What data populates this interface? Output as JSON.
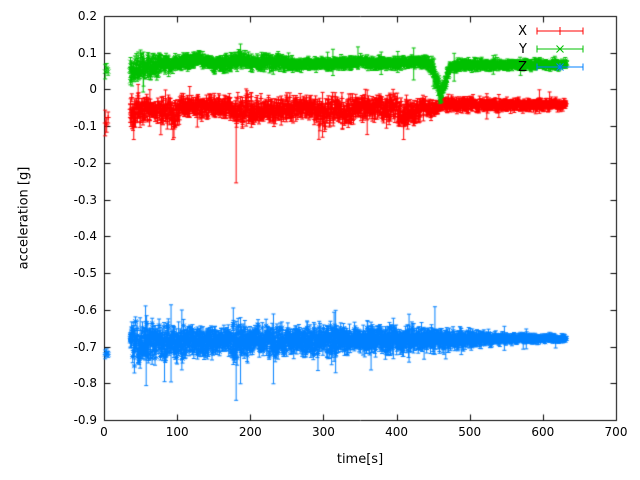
{
  "chart_data": {
    "type": "scatter",
    "title": "",
    "xlabel": "time[s]",
    "ylabel": "acceleration [g]",
    "xlim": [
      0,
      700
    ],
    "ylim": [
      -0.9,
      0.2
    ],
    "xticks": [
      0,
      100,
      200,
      300,
      400,
      500,
      600,
      700
    ],
    "xtick_labels": [
      "0",
      "100",
      "200",
      "300",
      "400",
      "500",
      "600",
      "700"
    ],
    "yticks": [
      0.2,
      0.1,
      0,
      -0.1,
      -0.2,
      -0.3,
      -0.4,
      -0.5,
      -0.6,
      -0.7,
      -0.8,
      -0.9
    ],
    "ytick_labels": [
      "0.2",
      "0.1",
      "0",
      "-0.1",
      "-0.2",
      "-0.3",
      "-0.4",
      "-0.5",
      "-0.6",
      "-0.7",
      "-0.8",
      "-0.9"
    ],
    "grid": false,
    "background": "#ffffff",
    "axis_color": "#000000",
    "legend": {
      "position": "top-right-inside",
      "style": "errorbar-samples"
    },
    "series": [
      {
        "name": "X",
        "color": "#ff0000",
        "marker": "plus",
        "style": "points-with-errorbars",
        "approx_mean_g": -0.05,
        "seed": 11,
        "t_start": 35,
        "t_end": 631,
        "dt": 0.4,
        "errbar": 0.012,
        "prelude_points": [
          {
            "t": 1,
            "y": -0.09,
            "err": 0.035
          },
          {
            "t": 3,
            "y": -0.095,
            "err": 0.02
          },
          {
            "t": 5,
            "y": -0.075,
            "err": 0.015
          }
        ],
        "mean_profile": [
          [
            35,
            -0.055
          ],
          [
            45,
            -0.05
          ],
          [
            60,
            -0.05
          ],
          [
            95,
            -0.06
          ],
          [
            110,
            -0.045
          ],
          [
            170,
            -0.045
          ],
          [
            182,
            -0.06
          ],
          [
            195,
            -0.05
          ],
          [
            205,
            -0.065
          ],
          [
            215,
            -0.05
          ],
          [
            230,
            -0.06
          ],
          [
            250,
            -0.05
          ],
          [
            270,
            -0.045
          ],
          [
            305,
            -0.065
          ],
          [
            315,
            -0.05
          ],
          [
            330,
            -0.065
          ],
          [
            345,
            -0.05
          ],
          [
            365,
            -0.045
          ],
          [
            395,
            -0.05
          ],
          [
            410,
            -0.07
          ],
          [
            425,
            -0.06
          ],
          [
            435,
            -0.045
          ],
          [
            448,
            -0.055
          ],
          [
            460,
            -0.04
          ],
          [
            630,
            -0.04
          ]
        ],
        "spread_profile": [
          [
            35,
            0.035
          ],
          [
            50,
            0.028
          ],
          [
            70,
            0.022
          ],
          [
            95,
            0.03
          ],
          [
            110,
            0.018
          ],
          [
            170,
            0.018
          ],
          [
            185,
            0.03
          ],
          [
            200,
            0.028
          ],
          [
            215,
            0.022
          ],
          [
            240,
            0.025
          ],
          [
            265,
            0.018
          ],
          [
            300,
            0.028
          ],
          [
            340,
            0.025
          ],
          [
            360,
            0.02
          ],
          [
            395,
            0.028
          ],
          [
            425,
            0.025
          ],
          [
            440,
            0.015
          ],
          [
            455,
            0.012
          ],
          [
            630,
            0.01
          ]
        ],
        "outliers": [
          {
            "t": 180,
            "y": -0.075,
            "lo": -0.253,
            "hi": -0.02
          },
          {
            "t": 40,
            "y": -0.1,
            "lo": -0.135,
            "hi": -0.06
          },
          {
            "t": 95,
            "y": -0.1,
            "lo": -0.13,
            "hi": -0.07
          },
          {
            "t": 409,
            "y": -0.1,
            "lo": -0.135,
            "hi": -0.07
          }
        ]
      },
      {
        "name": "Y",
        "color": "#00c000",
        "marker": "cross",
        "style": "points-with-errorbars",
        "approx_mean_g": 0.07,
        "seed": 22,
        "t_start": 35,
        "t_end": 632,
        "dt": 0.4,
        "errbar": 0.01,
        "prelude_points": [
          {
            "t": 1,
            "y": 0.05,
            "err": 0.02
          },
          {
            "t": 3,
            "y": 0.06,
            "err": 0.012
          },
          {
            "t": 5,
            "y": 0.05,
            "err": 0.01
          }
        ],
        "mean_profile": [
          [
            35,
            0.06
          ],
          [
            55,
            0.06
          ],
          [
            90,
            0.07
          ],
          [
            105,
            0.075
          ],
          [
            130,
            0.085
          ],
          [
            150,
            0.07
          ],
          [
            175,
            0.075
          ],
          [
            185,
            0.085
          ],
          [
            200,
            0.075
          ],
          [
            235,
            0.075
          ],
          [
            255,
            0.07
          ],
          [
            300,
            0.072
          ],
          [
            350,
            0.075
          ],
          [
            400,
            0.072
          ],
          [
            435,
            0.078
          ],
          [
            448,
            0.065
          ],
          [
            455,
            0.02
          ],
          [
            460,
            -0.01
          ],
          [
            466,
            0.02
          ],
          [
            473,
            0.06
          ],
          [
            485,
            0.068
          ],
          [
            630,
            0.07
          ]
        ],
        "spread_profile": [
          [
            35,
            0.032
          ],
          [
            60,
            0.026
          ],
          [
            80,
            0.02
          ],
          [
            95,
            0.012
          ],
          [
            125,
            0.012
          ],
          [
            140,
            0.01
          ],
          [
            180,
            0.016
          ],
          [
            195,
            0.012
          ],
          [
            235,
            0.016
          ],
          [
            260,
            0.01
          ],
          [
            430,
            0.01
          ],
          [
            450,
            0.015
          ],
          [
            462,
            0.015
          ],
          [
            472,
            0.01
          ],
          [
            630,
            0.008
          ]
        ],
        "outliers": [
          {
            "t": 186,
            "y": 0.095,
            "lo": 0.06,
            "hi": 0.125
          },
          {
            "t": 459,
            "y": -0.015,
            "lo": -0.03,
            "hi": 0.01
          }
        ]
      },
      {
        "name": "Z",
        "color": "#0080ff",
        "marker": "star",
        "style": "points-with-errorbars",
        "approx_mean_g": -0.68,
        "seed": 33,
        "t_start": 35,
        "t_end": 631,
        "dt": 0.4,
        "errbar": 0.015,
        "prelude_points": [
          {
            "t": 1,
            "y": -0.72,
            "err": 0.012
          },
          {
            "t": 3,
            "y": -0.715,
            "err": 0.01
          },
          {
            "t": 5,
            "y": -0.72,
            "err": 0.008
          }
        ],
        "mean_profile": [
          [
            35,
            -0.69
          ],
          [
            90,
            -0.688
          ],
          [
            150,
            -0.684
          ],
          [
            250,
            -0.683
          ],
          [
            350,
            -0.681
          ],
          [
            450,
            -0.679
          ],
          [
            630,
            -0.677
          ]
        ],
        "spread_profile": [
          [
            35,
            0.045
          ],
          [
            70,
            0.04
          ],
          [
            95,
            0.032
          ],
          [
            130,
            0.027
          ],
          [
            160,
            0.025
          ],
          [
            180,
            0.035
          ],
          [
            200,
            0.03
          ],
          [
            235,
            0.033
          ],
          [
            260,
            0.026
          ],
          [
            310,
            0.03
          ],
          [
            340,
            0.022
          ],
          [
            395,
            0.026
          ],
          [
            430,
            0.022
          ],
          [
            460,
            0.018
          ],
          [
            500,
            0.014
          ],
          [
            550,
            0.009
          ],
          [
            630,
            0.006
          ]
        ],
        "outliers": [
          {
            "t": 57,
            "y": -0.7,
            "lo": -0.805,
            "hi": -0.63
          },
          {
            "t": 91,
            "y": -0.69,
            "lo": -0.795,
            "hi": -0.585
          },
          {
            "t": 180,
            "y": -0.7,
            "lo": -0.845,
            "hi": -0.63
          },
          {
            "t": 186,
            "y": -0.695,
            "lo": -0.8,
            "hi": -0.62
          },
          {
            "t": 231,
            "y": -0.69,
            "lo": -0.8,
            "hi": -0.61
          },
          {
            "t": 316,
            "y": -0.685,
            "lo": -0.77,
            "hi": -0.6
          }
        ]
      }
    ]
  }
}
